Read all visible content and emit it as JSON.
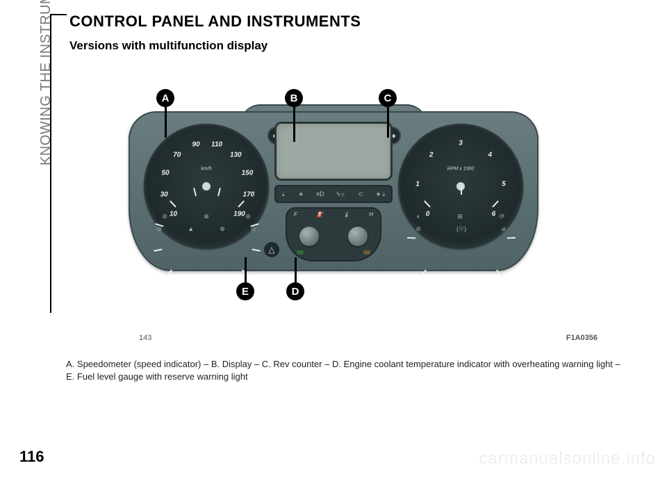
{
  "sidebar_label": "KNOWING THE INSTRUMENT PANEL",
  "title": "CONTROL PANEL AND INSTRUMENTS",
  "subtitle": "Versions with multifunction display",
  "figure_number": "143",
  "figure_code": "F1A0356",
  "caption": "A. Speedometer (speed indicator) – B. Display – C. Rev counter – D. Engine coolant temperature indicator with overheating warning light – E. Fuel level gauge with reserve warning light",
  "page_number": "116",
  "watermark": "carmanualsonline.info",
  "callouts": {
    "A": "A",
    "B": "B",
    "C": "C",
    "D": "D",
    "E": "E"
  },
  "cluster": {
    "speedo": {
      "label": "km/h",
      "ticks": [
        "10",
        "30",
        "50",
        "70",
        "90",
        "110",
        "130",
        "150",
        "170",
        "190"
      ],
      "angles": [
        -130,
        -101,
        -72,
        -43,
        -14,
        14,
        43,
        72,
        101,
        130
      ],
      "warn_icons_top": [
        "⊘",
        "⊗",
        "⊚"
      ],
      "warn_icons_bot": [
        "⊜",
        "▲",
        "⊕",
        "⊙"
      ],
      "color_face": "#2d3a3c",
      "color_text": "#e8eef0"
    },
    "tacho": {
      "label": "RPM x 1000",
      "ticks": [
        "0",
        "1",
        "2",
        "3",
        "4",
        "5",
        "6"
      ],
      "angles": [
        -130,
        -87,
        -43,
        0,
        43,
        87,
        130
      ],
      "warn_icons_top": [
        "◐",
        "⊞",
        "⟳"
      ],
      "warn_icons_bot": [
        "⊘",
        "(☉)",
        "⌀"
      ],
      "color_face": "#2d3a3c",
      "color_text": "#e8eef0"
    },
    "center_icon_strip": [
      "⇣",
      "∗",
      "≡D",
      "ϟ☼",
      "⊂",
      "∗⇣"
    ],
    "bottom_pod": {
      "fuel_full": "F",
      "fuel_icon": "⛽",
      "coolant_icon": "🌡",
      "temp_hot": "H"
    },
    "arrows": {
      "left": "⬅",
      "right": "➡"
    },
    "hazard": "△",
    "colors": {
      "body": "#6a7d80",
      "body_dark": "#4f6366",
      "bezel": "#3b4a4c",
      "screen": "#9da8a2",
      "led_green": "#2f6b3a",
      "led_amber": "#6b5a2f"
    }
  }
}
